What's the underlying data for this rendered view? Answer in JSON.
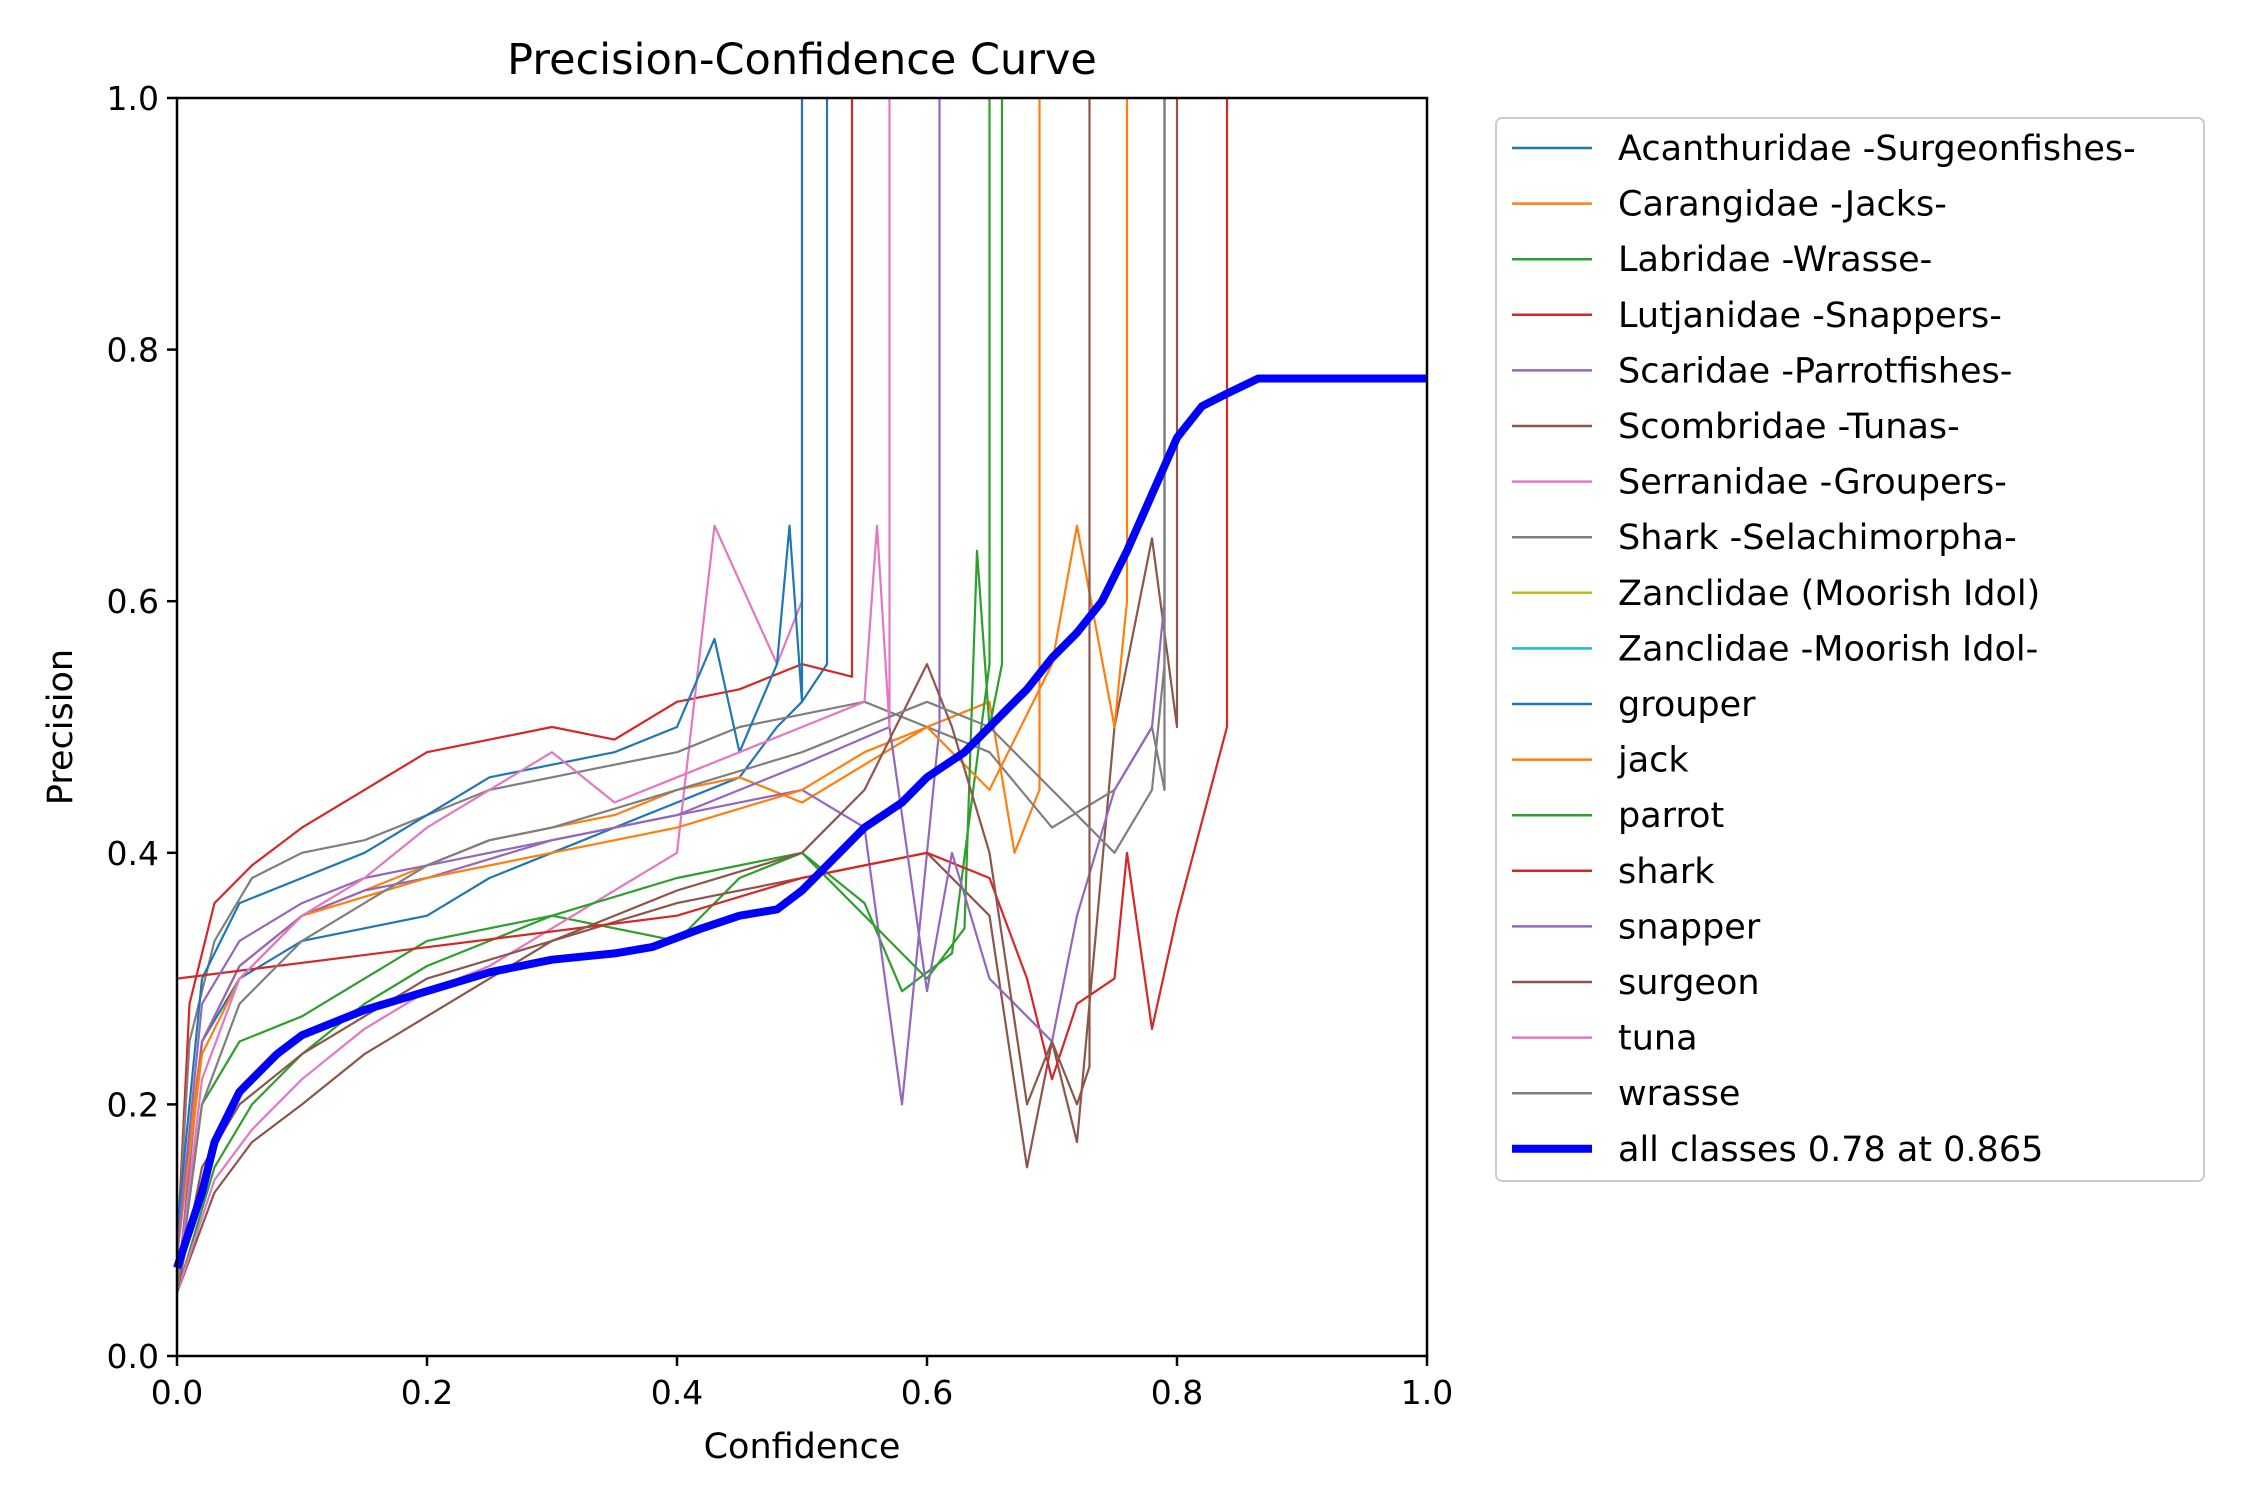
{
  "chart_data": {
    "type": "line",
    "title": "Precision-Confidence Curve",
    "xlabel": "Confidence",
    "ylabel": "Precision",
    "xlim": [
      0,
      1
    ],
    "ylim": [
      0,
      1
    ],
    "xticks": [
      "0.0",
      "0.2",
      "0.4",
      "0.6",
      "0.8",
      "1.0"
    ],
    "yticks": [
      "0.0",
      "0.2",
      "0.4",
      "0.6",
      "0.8",
      "1.0"
    ],
    "grid": false,
    "legend_position": "outside-right",
    "series": [
      {
        "name": "Acanthuridae -Surgeonfishes-",
        "color": "#1f77b4",
        "width": "thin",
        "x": [
          0.0,
          0.02,
          0.05,
          0.1,
          0.15,
          0.2,
          0.25,
          0.3,
          0.35,
          0.4,
          0.45,
          0.48,
          0.5,
          0.52,
          0.52
        ],
        "y": [
          0.08,
          0.25,
          0.3,
          0.33,
          0.34,
          0.35,
          0.38,
          0.4,
          0.42,
          0.44,
          0.46,
          0.5,
          0.52,
          0.55,
          1.0
        ]
      },
      {
        "name": "Carangidae -Jacks-",
        "color": "#ff7f0e",
        "width": "thin",
        "x": [
          0.0,
          0.02,
          0.05,
          0.1,
          0.15,
          0.2,
          0.25,
          0.3,
          0.35,
          0.4,
          0.45,
          0.5,
          0.55,
          0.6,
          0.65,
          0.67,
          0.69,
          0.69
        ],
        "y": [
          0.1,
          0.25,
          0.31,
          0.35,
          0.37,
          0.39,
          0.41,
          0.42,
          0.43,
          0.45,
          0.46,
          0.44,
          0.47,
          0.5,
          0.52,
          0.4,
          0.45,
          1.0
        ]
      },
      {
        "name": "Labridae -Wrasse-",
        "color": "#2ca02c",
        "width": "thin",
        "x": [
          0.0,
          0.03,
          0.06,
          0.1,
          0.15,
          0.2,
          0.25,
          0.3,
          0.35,
          0.4,
          0.45,
          0.5,
          0.55,
          0.58,
          0.62,
          0.65,
          0.65
        ],
        "y": [
          0.05,
          0.15,
          0.2,
          0.24,
          0.28,
          0.31,
          0.33,
          0.35,
          0.34,
          0.33,
          0.38,
          0.4,
          0.36,
          0.29,
          0.32,
          0.55,
          1.0
        ]
      },
      {
        "name": "Lutjanidae -Snappers-",
        "color": "#d62728",
        "width": "thin",
        "x": [
          0.0,
          0.01,
          0.03,
          0.06,
          0.1,
          0.15,
          0.2,
          0.25,
          0.3,
          0.35,
          0.4,
          0.45,
          0.5,
          0.54,
          0.54
        ],
        "y": [
          0.08,
          0.28,
          0.36,
          0.39,
          0.42,
          0.45,
          0.48,
          0.49,
          0.5,
          0.49,
          0.52,
          0.53,
          0.55,
          0.54,
          1.0
        ]
      },
      {
        "name": "Scaridae -Parrotfishes-",
        "color": "#9467bd",
        "width": "thin",
        "x": [
          0.0,
          0.02,
          0.05,
          0.1,
          0.15,
          0.2,
          0.3,
          0.4,
          0.5,
          0.55,
          0.58,
          0.6,
          0.61,
          0.61
        ],
        "y": [
          0.05,
          0.25,
          0.31,
          0.35,
          0.37,
          0.38,
          0.41,
          0.43,
          0.45,
          0.42,
          0.2,
          0.4,
          0.5,
          1.0
        ]
      },
      {
        "name": "Scombridae -Tunas-",
        "color": "#8c564b",
        "width": "thin",
        "x": [
          0.0,
          0.03,
          0.06,
          0.1,
          0.15,
          0.2,
          0.3,
          0.4,
          0.5,
          0.6,
          0.65,
          0.68,
          0.7,
          0.72,
          0.75,
          0.78,
          0.8,
          0.8
        ],
        "y": [
          0.05,
          0.13,
          0.17,
          0.2,
          0.24,
          0.27,
          0.33,
          0.36,
          0.38,
          0.4,
          0.35,
          0.15,
          0.25,
          0.17,
          0.5,
          0.65,
          0.5,
          1.0
        ]
      },
      {
        "name": "Serranidae -Groupers-",
        "color": "#e377c2",
        "width": "thin",
        "x": [
          0.0,
          0.03,
          0.06,
          0.1,
          0.15,
          0.2,
          0.25,
          0.3,
          0.35,
          0.4,
          0.43,
          0.48,
          0.5,
          0.5
        ],
        "y": [
          0.05,
          0.14,
          0.18,
          0.22,
          0.26,
          0.29,
          0.31,
          0.34,
          0.37,
          0.4,
          0.66,
          0.55,
          0.6,
          1.0
        ]
      },
      {
        "name": "Shark -Selachimorpha-",
        "color": "#7f7f7f",
        "width": "thin",
        "x": [
          0.0,
          0.01,
          0.03,
          0.06,
          0.1,
          0.15,
          0.2,
          0.25,
          0.3,
          0.35,
          0.4,
          0.45,
          0.5,
          0.55,
          0.6,
          0.65,
          0.7,
          0.75,
          0.78,
          0.79,
          0.79
        ],
        "y": [
          0.08,
          0.25,
          0.33,
          0.38,
          0.4,
          0.41,
          0.43,
          0.45,
          0.46,
          0.47,
          0.48,
          0.5,
          0.51,
          0.52,
          0.5,
          0.48,
          0.42,
          0.45,
          0.5,
          0.45,
          1.0
        ]
      },
      {
        "name": "Zanclidae (Moorish Idol)",
        "color": "#bcbd22",
        "width": "thin",
        "x": [],
        "y": []
      },
      {
        "name": "Zanclidae -Moorish Idol-",
        "color": "#17becf",
        "width": "thin",
        "x": [],
        "y": []
      },
      {
        "name": "grouper",
        "color": "#1f77b4",
        "width": "thin",
        "x": [
          0.0,
          0.02,
          0.05,
          0.1,
          0.15,
          0.2,
          0.25,
          0.3,
          0.35,
          0.4,
          0.43,
          0.45,
          0.48,
          0.49,
          0.5,
          0.5
        ],
        "y": [
          0.1,
          0.3,
          0.36,
          0.38,
          0.4,
          0.43,
          0.46,
          0.47,
          0.48,
          0.5,
          0.57,
          0.48,
          0.55,
          0.66,
          0.52,
          1.0
        ]
      },
      {
        "name": "jack",
        "color": "#ff7f0e",
        "width": "thin",
        "x": [
          0.0,
          0.02,
          0.05,
          0.1,
          0.2,
          0.3,
          0.4,
          0.5,
          0.55,
          0.6,
          0.65,
          0.7,
          0.72,
          0.75,
          0.76,
          0.76
        ],
        "y": [
          0.08,
          0.24,
          0.3,
          0.35,
          0.38,
          0.4,
          0.42,
          0.45,
          0.48,
          0.5,
          0.45,
          0.55,
          0.66,
          0.5,
          0.6,
          1.0
        ]
      },
      {
        "name": "parrot",
        "color": "#2ca02c",
        "width": "thin",
        "x": [
          0.0,
          0.02,
          0.05,
          0.1,
          0.15,
          0.2,
          0.3,
          0.4,
          0.5,
          0.55,
          0.6,
          0.63,
          0.64,
          0.65,
          0.66,
          0.66
        ],
        "y": [
          0.05,
          0.2,
          0.25,
          0.27,
          0.3,
          0.33,
          0.35,
          0.38,
          0.4,
          0.35,
          0.3,
          0.34,
          0.64,
          0.5,
          0.55,
          1.0
        ]
      },
      {
        "name": "shark",
        "color": "#d62728",
        "width": "thin",
        "x": [
          0.0,
          0.4,
          0.5,
          0.6,
          0.65,
          0.68,
          0.7,
          0.72,
          0.75,
          0.76,
          0.77,
          0.78,
          0.8,
          0.84,
          0.84
        ],
        "y": [
          0.3,
          0.35,
          0.38,
          0.4,
          0.38,
          0.3,
          0.22,
          0.28,
          0.3,
          0.4,
          0.33,
          0.26,
          0.35,
          0.5,
          1.0
        ]
      },
      {
        "name": "snapper",
        "color": "#9467bd",
        "width": "thin",
        "x": [
          0.0,
          0.02,
          0.05,
          0.1,
          0.15,
          0.2,
          0.3,
          0.4,
          0.5,
          0.57,
          0.6,
          0.62,
          0.65,
          0.7,
          0.72,
          0.75,
          0.78,
          0.79,
          0.79
        ],
        "y": [
          0.08,
          0.28,
          0.33,
          0.36,
          0.38,
          0.39,
          0.41,
          0.43,
          0.47,
          0.5,
          0.29,
          0.4,
          0.3,
          0.25,
          0.35,
          0.45,
          0.5,
          0.6,
          1.0
        ]
      },
      {
        "name": "surgeon",
        "color": "#8c564b",
        "width": "thin",
        "x": [
          0.0,
          0.02,
          0.05,
          0.1,
          0.2,
          0.3,
          0.4,
          0.5,
          0.55,
          0.6,
          0.62,
          0.65,
          0.68,
          0.7,
          0.72,
          0.73,
          0.73
        ],
        "y": [
          0.05,
          0.15,
          0.2,
          0.24,
          0.3,
          0.33,
          0.37,
          0.4,
          0.45,
          0.55,
          0.5,
          0.4,
          0.2,
          0.25,
          0.2,
          0.23,
          1.0
        ]
      },
      {
        "name": "tuna",
        "color": "#e377c2",
        "width": "thin",
        "x": [
          0.0,
          0.02,
          0.05,
          0.1,
          0.15,
          0.2,
          0.25,
          0.3,
          0.35,
          0.4,
          0.45,
          0.5,
          0.55,
          0.56,
          0.57,
          0.57
        ],
        "y": [
          0.05,
          0.22,
          0.3,
          0.35,
          0.38,
          0.42,
          0.45,
          0.48,
          0.44,
          0.46,
          0.48,
          0.5,
          0.52,
          0.66,
          0.5,
          1.0
        ]
      },
      {
        "name": "wrasse",
        "color": "#7f7f7f",
        "width": "thin",
        "x": [
          0.0,
          0.02,
          0.05,
          0.1,
          0.15,
          0.2,
          0.25,
          0.3,
          0.4,
          0.5,
          0.55,
          0.6,
          0.65,
          0.7,
          0.75,
          0.78,
          0.79,
          0.79
        ],
        "y": [
          0.05,
          0.2,
          0.28,
          0.33,
          0.36,
          0.39,
          0.41,
          0.42,
          0.45,
          0.48,
          0.5,
          0.52,
          0.5,
          0.45,
          0.4,
          0.45,
          0.55,
          1.0
        ]
      },
      {
        "name": "all classes 0.78 at 0.865",
        "color": "#0000ff",
        "width": "thick",
        "x": [
          0.0,
          0.01,
          0.02,
          0.03,
          0.05,
          0.08,
          0.1,
          0.15,
          0.2,
          0.25,
          0.3,
          0.35,
          0.38,
          0.42,
          0.45,
          0.48,
          0.5,
          0.52,
          0.55,
          0.58,
          0.6,
          0.63,
          0.65,
          0.68,
          0.7,
          0.72,
          0.74,
          0.76,
          0.78,
          0.8,
          0.82,
          0.84,
          0.865,
          1.0
        ],
        "y": [
          0.07,
          0.1,
          0.13,
          0.17,
          0.21,
          0.24,
          0.255,
          0.275,
          0.29,
          0.305,
          0.315,
          0.32,
          0.325,
          0.34,
          0.35,
          0.355,
          0.37,
          0.39,
          0.42,
          0.44,
          0.46,
          0.48,
          0.5,
          0.53,
          0.555,
          0.575,
          0.6,
          0.64,
          0.685,
          0.73,
          0.755,
          0.765,
          0.777,
          0.777
        ]
      }
    ]
  }
}
